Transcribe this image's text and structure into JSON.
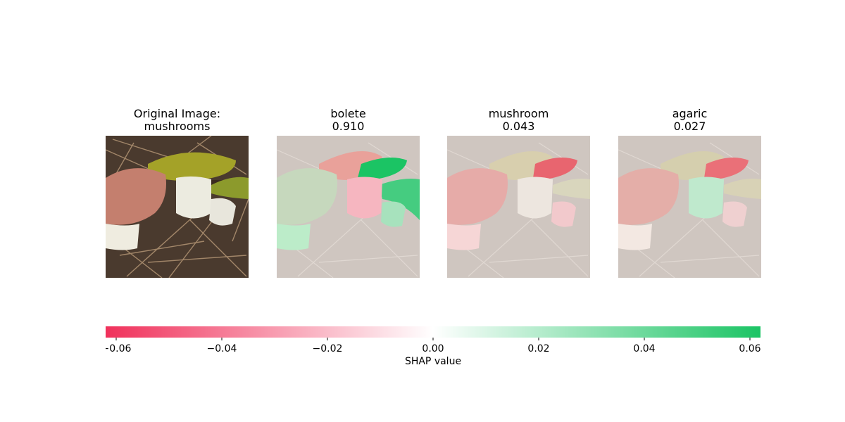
{
  "panels": [
    {
      "title": "Original Image:\nmushrooms"
    },
    {
      "title": "bolete\n 0.910"
    },
    {
      "title": "mushroom\n 0.043"
    },
    {
      "title": "agaric\n 0.027"
    }
  ],
  "colors": {
    "negative": "#f0315b",
    "positive": "#1bc464",
    "neutral": "#ffffff"
  },
  "chart_data": {
    "type": "heatmap",
    "image_label": "mushrooms",
    "explanations": [
      {
        "class": "bolete",
        "probability": 0.91
      },
      {
        "class": "mushroom",
        "probability": 0.043
      },
      {
        "class": "agaric",
        "probability": 0.027
      }
    ],
    "colorbar": {
      "label": "SHAP value",
      "range": [
        -0.062,
        0.062
      ],
      "ticks": [
        -0.06,
        -0.04,
        -0.02,
        0.0,
        0.02,
        0.04,
        0.06
      ],
      "tick_labels": [
        "−0.06",
        "−0.04",
        "−0.02",
        "0.00",
        "0.02",
        "0.04",
        "0.06"
      ]
    }
  }
}
